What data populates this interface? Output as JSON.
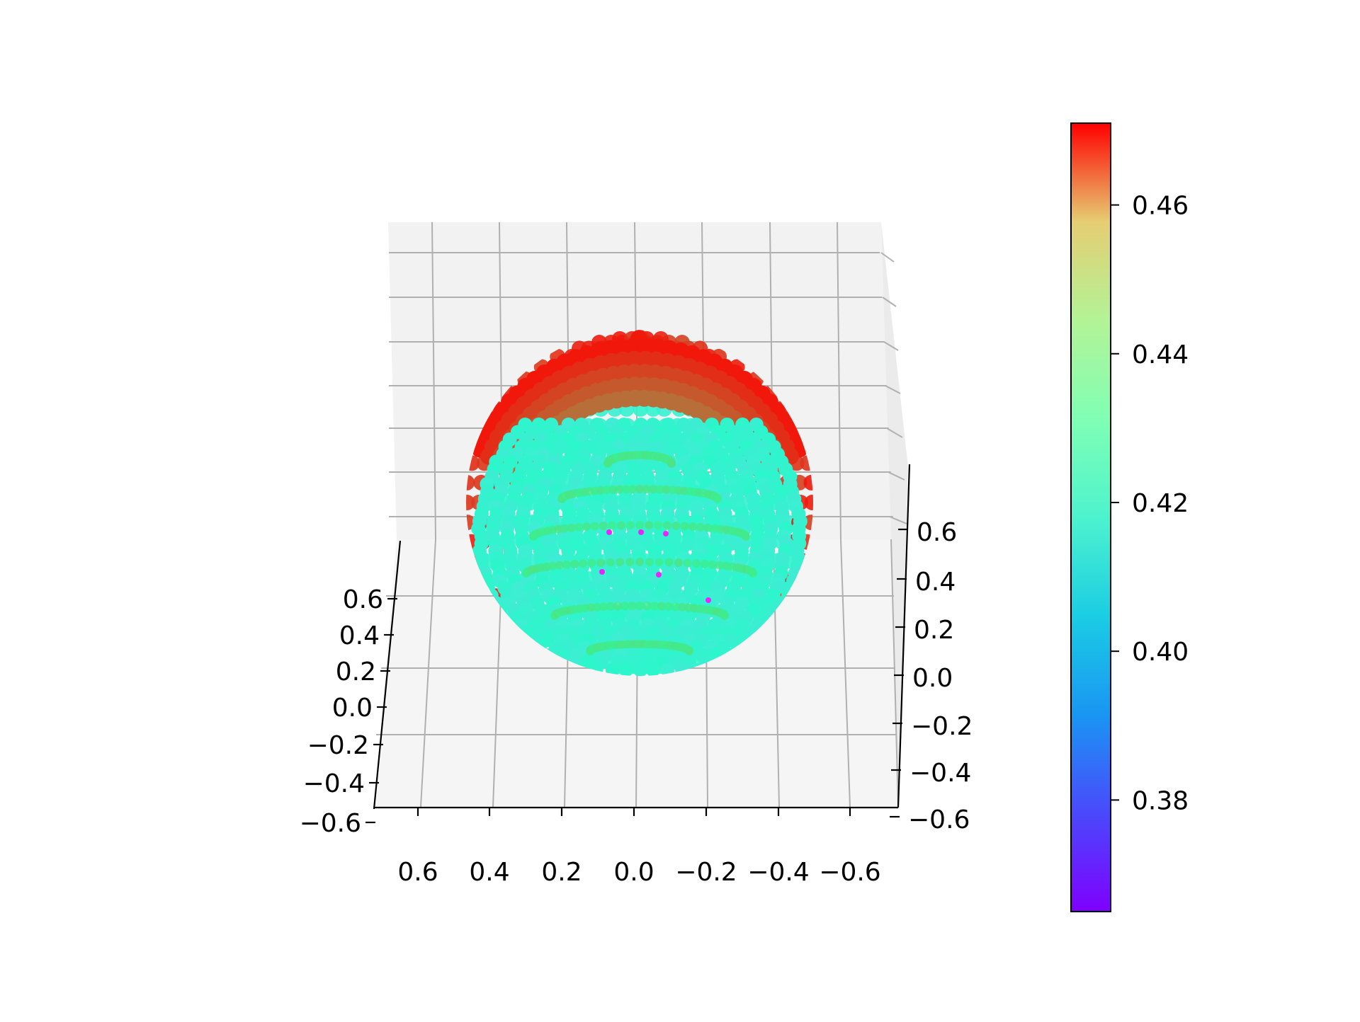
{
  "chart_data": {
    "type": "scatter",
    "projection": "3d",
    "description_of_marks": "dense spherical point cloud of radius ~0.55 centered at origin, colored by a scalar value with a rainbow colormap",
    "shape": "sphere",
    "radius": 0.55,
    "center": [
      0,
      0,
      0
    ],
    "title": "",
    "xlabel": "",
    "ylabel": "",
    "zlabel": "",
    "xlim": [
      -0.7,
      0.7
    ],
    "ylim": [
      -0.6,
      0.75
    ],
    "zlim": [
      -0.6,
      0.75
    ],
    "x_ticks": [
      0.6,
      0.4,
      0.2,
      0.0,
      -0.2,
      -0.4,
      -0.6
    ],
    "x_tick_labels": [
      "0.6",
      "0.4",
      "0.2",
      "0.0",
      "−0.2",
      "−0.4",
      "−0.6"
    ],
    "y_ticks": [
      0.6,
      0.4,
      0.2,
      0.0,
      -0.2,
      -0.4,
      -0.6
    ],
    "y_tick_labels": [
      "0.6",
      "0.4",
      "0.2",
      "0.0",
      "−0.2",
      "−0.4",
      "−0.6"
    ],
    "z_ticks": [
      0.6,
      0.4,
      0.2,
      0.0,
      -0.2,
      -0.4,
      -0.6
    ],
    "z_tick_labels": [
      "0.6",
      "0.4",
      "0.2",
      "0.0",
      "−0.2",
      "−0.4",
      "−0.6"
    ],
    "grid": true,
    "value_range": [
      0.365,
      0.471
    ],
    "value_bands": {
      "outer_rim": 0.468,
      "inner_face": 0.407,
      "stripes": 0.432,
      "dark_spots": 0.37
    },
    "colormap": "rainbow",
    "colorbar": {
      "min": 0.365,
      "max": 0.471,
      "ticks": [
        0.38,
        0.4,
        0.42,
        0.44,
        0.46
      ],
      "tick_labels": [
        "0.38",
        "0.40",
        "0.42",
        "0.44",
        "0.46"
      ],
      "placement": "right"
    }
  }
}
